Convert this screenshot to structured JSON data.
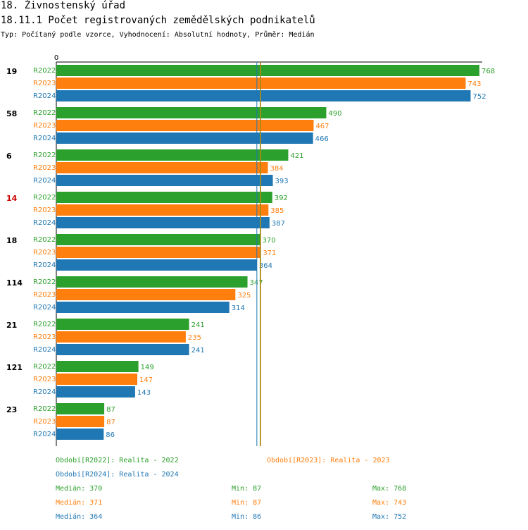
{
  "header": {
    "title": "18. Živnostenský úřad",
    "subtitle": "18.11.1 Počet registrovaných zemědělských podnikatelů",
    "typeline": "Typ: Počítaný podle vzorce, Vyhodnocení: Absolutní hodnoty, Průměr: Medián"
  },
  "colors": {
    "R2022": "#2ca02c",
    "R2023": "#ff7f0e",
    "R2024": "#1f77b4",
    "highlight": "#cc0000"
  },
  "chart_data": {
    "type": "bar",
    "orientation": "horizontal",
    "x_tick_label": "0",
    "xlim": [
      0,
      768
    ],
    "series_names": [
      "R2022",
      "R2023",
      "R2024"
    ],
    "groups": [
      {
        "label": "19",
        "highlight": false,
        "values": [
          768,
          743,
          752
        ]
      },
      {
        "label": "58",
        "highlight": false,
        "values": [
          490,
          467,
          466
        ]
      },
      {
        "label": "6",
        "highlight": false,
        "values": [
          421,
          384,
          393
        ]
      },
      {
        "label": "14",
        "highlight": true,
        "values": [
          392,
          385,
          387
        ]
      },
      {
        "label": "18",
        "highlight": false,
        "values": [
          370,
          371,
          364
        ]
      },
      {
        "label": "114",
        "highlight": false,
        "values": [
          347,
          325,
          314
        ]
      },
      {
        "label": "21",
        "highlight": false,
        "values": [
          241,
          235,
          241
        ]
      },
      {
        "label": "121",
        "highlight": false,
        "values": [
          149,
          147,
          143
        ]
      },
      {
        "label": "23",
        "highlight": false,
        "values": [
          87,
          87,
          86
        ]
      }
    ],
    "median_lines": [
      370,
      371,
      364
    ]
  },
  "legend": {
    "periods": [
      "Období[R2022]: Realita - 2022",
      "Období[R2023]: Realita - 2023",
      "Období[R2024]: Realita - 2024"
    ],
    "stats": [
      {
        "median": "Medián: 370",
        "min": "Min: 87",
        "max": "Max: 768"
      },
      {
        "median": "Medián: 371",
        "min": "Min: 87",
        "max": "Max: 743"
      },
      {
        "median": "Medián: 364",
        "min": "Min: 86",
        "max": "Max: 752"
      }
    ]
  }
}
